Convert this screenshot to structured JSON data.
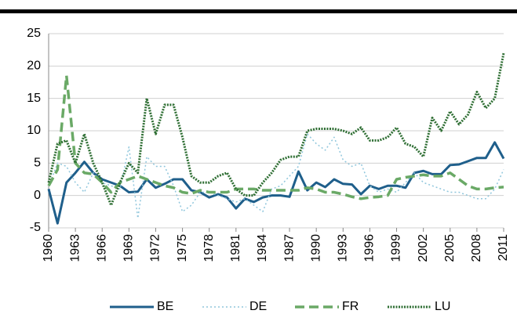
{
  "chart_data": {
    "type": "line",
    "x": [
      1960,
      1961,
      1962,
      1963,
      1964,
      1965,
      1966,
      1967,
      1968,
      1969,
      1970,
      1971,
      1972,
      1973,
      1974,
      1975,
      1976,
      1977,
      1978,
      1979,
      1980,
      1981,
      1982,
      1983,
      1984,
      1985,
      1986,
      1987,
      1988,
      1989,
      1990,
      1991,
      1992,
      1993,
      1994,
      1995,
      1996,
      1997,
      1998,
      1999,
      2000,
      2001,
      2002,
      2003,
      2004,
      2005,
      2006,
      2007,
      2008,
      2009,
      2010,
      2011
    ],
    "xlim": [
      1960,
      2011
    ],
    "xticks": [
      1960,
      1963,
      1966,
      1969,
      1972,
      1975,
      1978,
      1981,
      1984,
      1987,
      1990,
      1993,
      1996,
      1999,
      2002,
      2005,
      2008,
      2011
    ],
    "ylim": [
      -5,
      25
    ],
    "yticks": [
      -5,
      0,
      5,
      10,
      15,
      20,
      25
    ],
    "grid": true,
    "legend": "bottom",
    "series": [
      {
        "name": "BE",
        "color": "#1f5f8b",
        "width": 3,
        "dash": "none",
        "values": [
          1,
          -4.3,
          2,
          3.5,
          5.2,
          3.5,
          2.5,
          2,
          1.5,
          0.5,
          0.6,
          2.5,
          1.2,
          1.8,
          2.5,
          2.5,
          0.8,
          0.5,
          -0.3,
          0.2,
          -0.3,
          -2,
          -0.5,
          -1,
          -0.3,
          0,
          0,
          -0.2,
          3.7,
          0.8,
          2,
          1.3,
          2.5,
          1.8,
          1.7,
          0.2,
          1.5,
          1,
          1.5,
          1.5,
          1.2,
          3.5,
          3.8,
          3.3,
          3.3,
          4.7,
          4.8,
          5.3,
          5.8,
          5.8,
          8.2,
          5.7
        ]
      },
      {
        "name": "DE",
        "color": "#8fc6dc",
        "width": 1.5,
        "dash": "2 3",
        "values": [
          1.5,
          5,
          4.5,
          2,
          0.5,
          3.5,
          2,
          1.5,
          1,
          7.5,
          -3.5,
          6,
          4.5,
          4.5,
          1.5,
          -2.5,
          -1.5,
          0.5,
          0.5,
          0,
          -0.5,
          -1,
          -0.5,
          -1.5,
          -2.5,
          1,
          1.5,
          3,
          4.5,
          9.5,
          8,
          7,
          9,
          5.5,
          4.5,
          5,
          1.5,
          0.5,
          1,
          0.5,
          2,
          3.5,
          2,
          1.5,
          1,
          0.5,
          0.5,
          0,
          -0.5,
          -0.5,
          1,
          4
        ]
      },
      {
        "name": "FR",
        "color": "#6aa966",
        "width": 3.5,
        "dash": "12 6",
        "values": [
          1.5,
          4,
          18.5,
          5,
          3.5,
          3.3,
          2,
          0.5,
          2,
          2.5,
          3,
          2.5,
          2,
          1.5,
          1.2,
          0.5,
          0.3,
          0.8,
          0.5,
          0.5,
          0.5,
          1,
          1,
          1,
          0.8,
          0.8,
          0.8,
          0.8,
          0.8,
          1.2,
          1,
          0.5,
          0.5,
          0.2,
          -0.2,
          -0.5,
          -0.3,
          -0.2,
          0,
          2.5,
          2.8,
          3,
          3.2,
          3,
          3,
          3.5,
          2.5,
          1.5,
          1,
          1,
          1.2,
          1.3
        ]
      },
      {
        "name": "LU",
        "color": "#2e6e33",
        "width": 3,
        "dash": "2 1.5",
        "values": [
          2,
          8,
          8.5,
          5,
          9.5,
          5,
          2,
          -1.5,
          2,
          5,
          3.5,
          15,
          9.5,
          14,
          14,
          9,
          3,
          2,
          2,
          3,
          3.5,
          1,
          0,
          0,
          2,
          3.5,
          5.5,
          6,
          6,
          10,
          10.3,
          10.3,
          10.3,
          10,
          9.5,
          10.5,
          8.5,
          8.5,
          9,
          10.5,
          8,
          7.5,
          6,
          12,
          10,
          13,
          11,
          12.5,
          16,
          13.5,
          15,
          22
        ]
      }
    ]
  }
}
